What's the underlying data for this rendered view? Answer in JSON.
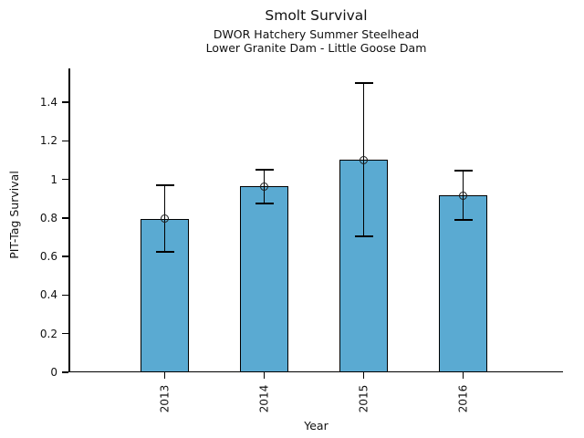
{
  "chart_data": {
    "type": "bar",
    "title": "Smolt Survival",
    "subtitle1": "DWOR Hatchery Summer Steelhead",
    "subtitle2": "Lower Granite Dam - Little Goose Dam",
    "categories": [
      "2013",
      "2014",
      "2015",
      "2016"
    ],
    "values": [
      0.795,
      0.963,
      1.1,
      0.917
    ],
    "error_low": [
      0.625,
      0.875,
      0.705,
      0.79
    ],
    "error_high": [
      0.97,
      1.05,
      1.5,
      1.045
    ],
    "xlabel": "Year",
    "ylabel": "PIT-Tag Survival",
    "ylim": [
      0,
      1.575
    ],
    "yticks": [
      0,
      0.2,
      0.4,
      0.6,
      0.8,
      1,
      1.2,
      1.4
    ],
    "ytick_labels": [
      "0",
      "0.2",
      "0.4",
      "0.6",
      "0.8",
      "1",
      "1.2",
      "1.4"
    ],
    "grid": false,
    "legend_position": "none",
    "bar_color": "#5aaad2",
    "bar_edge_color": "#000000",
    "error_bar_color": "#000000",
    "marker": "open-circle"
  }
}
